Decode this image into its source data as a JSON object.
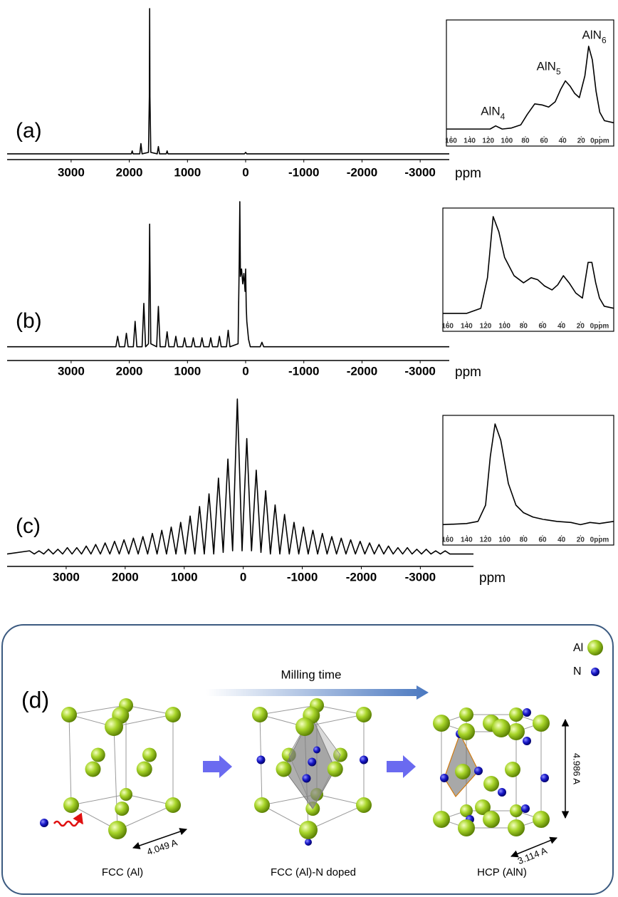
{
  "chart_data": [
    {
      "type": "line",
      "label": "(a)",
      "x_label": "ppm",
      "color": "#000000",
      "x": [
        4100,
        2100,
        1965,
        1950,
        1935,
        1820,
        1800,
        1780,
        1670,
        1655,
        1650,
        1645,
        1630,
        1520,
        1500,
        1480,
        1365,
        1350,
        1335,
        20,
        0,
        -20,
        -3500
      ],
      "values": [
        1,
        1,
        1,
        3,
        1,
        1,
        8,
        1,
        2,
        40,
        100,
        40,
        2,
        1,
        6,
        1,
        1,
        3,
        1,
        1,
        2,
        1,
        1
      ],
      "xlim": [
        4100,
        -3500
      ],
      "xticks": [
        3000,
        2000,
        1000,
        0,
        -1000,
        -2000,
        -3000
      ],
      "ylim": [
        0,
        100
      ]
    },
    {
      "type": "line",
      "label": "(b)",
      "x_label": "ppm",
      "color": "#000000",
      "x": [
        4100,
        2230,
        2200,
        2170,
        2080,
        2050,
        2020,
        1930,
        1900,
        1870,
        1780,
        1750,
        1720,
        1670,
        1655,
        1650,
        1645,
        1630,
        1530,
        1500,
        1470,
        1380,
        1350,
        1320,
        1230,
        1200,
        1170,
        1080,
        1050,
        1020,
        930,
        900,
        870,
        780,
        750,
        720,
        630,
        600,
        570,
        480,
        450,
        420,
        330,
        300,
        270,
        130,
        110,
        100,
        90,
        70,
        50,
        30,
        10,
        0,
        -10,
        -20,
        -50,
        -80,
        -250,
        -280,
        -310,
        -3500
      ],
      "values": [
        3,
        3,
        10,
        3,
        3,
        12,
        3,
        3,
        20,
        3,
        3,
        32,
        3,
        5,
        60,
        85,
        60,
        5,
        3,
        30,
        3,
        3,
        13,
        3,
        3,
        10,
        3,
        3,
        9,
        3,
        3,
        9,
        3,
        3,
        9,
        3,
        3,
        9,
        3,
        3,
        10,
        3,
        3,
        14,
        3,
        5,
        60,
        100,
        50,
        55,
        45,
        52,
        40,
        55,
        30,
        20,
        8,
        3,
        3,
        6,
        3,
        3
      ],
      "xlim": [
        4100,
        -3500
      ],
      "xticks": [
        3000,
        2000,
        1000,
        0,
        -1000,
        -2000,
        -3000
      ],
      "ylim": [
        0,
        100
      ]
    },
    {
      "type": "line",
      "label": "(c)",
      "x_label": "ppm",
      "color": "#000000",
      "x": [
        4000,
        3620,
        3540,
        3460,
        3380,
        3300,
        3220,
        3140,
        3060,
        2980,
        2900,
        2820,
        2740,
        2660,
        2580,
        2500,
        2420,
        2340,
        2260,
        2180,
        2100,
        2020,
        1940,
        1860,
        1780,
        1700,
        1620,
        1540,
        1460,
        1380,
        1300,
        1220,
        1140,
        1060,
        980,
        900,
        820,
        740,
        660,
        580,
        500,
        420,
        340,
        260,
        180,
        100,
        20,
        -60,
        -140,
        -220,
        -300,
        -380,
        -460,
        -540,
        -620,
        -700,
        -780,
        -860,
        -940,
        -1020,
        -1100,
        -1180,
        -1260,
        -1340,
        -1420,
        -1500,
        -1580,
        -1660,
        -1740,
        -1820,
        -1900,
        -1980,
        -2060,
        -2140,
        -2220,
        -2300,
        -2380,
        -2460,
        -2540,
        -2620,
        -2700,
        -2780,
        -2860,
        -2940,
        -3020,
        -3100,
        -3180,
        -3260,
        -3340,
        -3420,
        -3500,
        -3900
      ],
      "values": [
        2,
        4,
        2,
        4,
        2,
        5,
        2,
        5,
        2,
        6,
        2,
        6,
        2,
        7,
        2,
        8,
        2,
        9,
        2,
        10,
        2,
        11,
        2,
        12,
        2,
        13,
        2,
        15,
        2,
        17,
        2,
        19,
        2,
        22,
        2,
        26,
        2,
        32,
        2,
        40,
        2,
        50,
        3,
        62,
        4,
        100,
        4,
        75,
        4,
        55,
        3,
        42,
        2,
        33,
        2,
        27,
        2,
        22,
        2,
        19,
        2,
        17,
        2,
        15,
        2,
        13,
        2,
        12,
        2,
        11,
        2,
        10,
        2,
        9,
        2,
        8,
        2,
        7,
        2,
        6,
        2,
        6,
        2,
        5,
        2,
        5,
        2,
        4,
        2,
        4,
        2,
        2
      ],
      "xlim": [
        4000,
        -3900
      ],
      "xticks": [
        3000,
        2000,
        1000,
        0,
        -1000,
        -2000,
        -3000
      ],
      "ylim": [
        0,
        100
      ]
    },
    {
      "type": "line",
      "color": "#000000",
      "x": [
        165,
        150,
        130,
        118,
        112,
        105,
        95,
        85,
        78,
        70,
        62,
        55,
        48,
        42,
        37,
        32,
        27,
        22,
        16,
        12,
        8,
        4,
        0,
        -5,
        -15
      ],
      "values": [
        4,
        4,
        4,
        4,
        7,
        4,
        5,
        8,
        18,
        28,
        27,
        25,
        30,
        42,
        50,
        45,
        38,
        34,
        55,
        83,
        70,
        40,
        20,
        12,
        10
      ],
      "xlim": [
        165,
        -15
      ],
      "xticks": [
        160,
        140,
        120,
        100,
        80,
        60,
        40,
        20,
        {
          "value": 0,
          "label": "0ppm"
        }
      ],
      "ylim": [
        0,
        100
      ],
      "annotations": [
        {
          "text": "AlN",
          "subscript": "4",
          "x": 115,
          "y": 20
        },
        {
          "text": "AlN",
          "subscript": "5",
          "x": 55,
          "y": 63
        },
        {
          "text": "AlN",
          "subscript": "6",
          "x": 6,
          "y": 93
        }
      ]
    },
    {
      "type": "line",
      "color": "#000000",
      "x": [
        165,
        140,
        125,
        118,
        112,
        106,
        100,
        90,
        80,
        72,
        65,
        58,
        50,
        44,
        38,
        32,
        25,
        18,
        12,
        8,
        4,
        0,
        -5,
        -15
      ],
      "values": [
        5,
        5,
        10,
        40,
        100,
        85,
        60,
        42,
        35,
        40,
        38,
        32,
        28,
        33,
        42,
        35,
        25,
        20,
        55,
        55,
        35,
        20,
        12,
        10
      ],
      "xlim": [
        165,
        -15
      ],
      "xticks": [
        160,
        140,
        120,
        100,
        80,
        60,
        40,
        20,
        {
          "value": 0,
          "label": "0ppm"
        }
      ],
      "ylim": [
        0,
        100
      ]
    },
    {
      "type": "line",
      "color": "#000000",
      "x": [
        165,
        140,
        128,
        120,
        115,
        110,
        104,
        96,
        88,
        80,
        70,
        60,
        45,
        30,
        20,
        10,
        0,
        -15
      ],
      "values": [
        7,
        8,
        10,
        25,
        70,
        100,
        85,
        45,
        25,
        18,
        14,
        12,
        10,
        9,
        7,
        9,
        8,
        10
      ],
      "xlim": [
        165,
        -15
      ],
      "xticks": [
        160,
        140,
        120,
        100,
        80,
        60,
        40,
        20,
        {
          "value": 0,
          "label": "0ppm"
        }
      ],
      "ylim": [
        0,
        100
      ]
    }
  ],
  "diagram": {
    "label": "(d)",
    "legend": [
      {
        "label": "Al"
      },
      {
        "label": "N"
      }
    ],
    "arrow_label": "Milling time",
    "structures": [
      {
        "caption": "FCC (Al)",
        "dimension": "4.049 A"
      },
      {
        "caption": "FCC (Al)-N doped"
      },
      {
        "caption": "HCP (AlN)",
        "dimensions": [
          "4.986 A",
          "3.114 A"
        ]
      }
    ]
  }
}
